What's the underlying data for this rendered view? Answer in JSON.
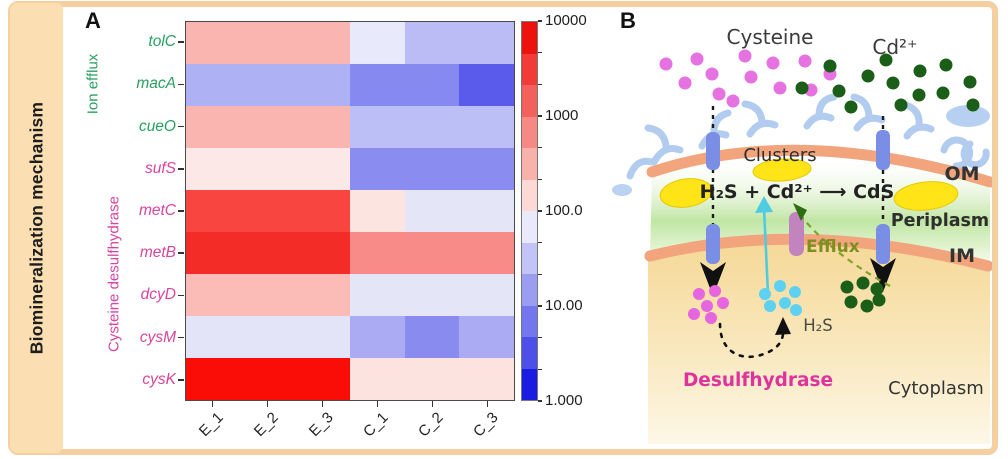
{
  "sidebar": {
    "title": "Biomineralization mechanism"
  },
  "panel_a": {
    "label": "A"
  },
  "panel_b": {
    "label": "B",
    "labels": {
      "cysteine": "Cysteine",
      "cd": "Cd²⁺",
      "clusters": "Clusters",
      "reaction": "H₂S + Cd²⁺ ⟶ CdS",
      "om": "OM",
      "periplasm": "Periplasm",
      "im": "IM",
      "efflux": "Efflux",
      "h2s": "H₂S",
      "desulfhydrase": "Desulfhydrase",
      "cytoplasm": "Cytoplasm"
    },
    "colors": {
      "cysteine_dots": "#e572e0",
      "cd_dots": "#1a5e18",
      "h2s_dots": "#5fd1f0",
      "membrane": "#f2a47c",
      "channel": "#7a8ee6",
      "efflux_pump": "#c184be",
      "cluster_blob": "#ffe418",
      "periplasm_glow": "#b8e399",
      "cytoplasm_fill": "#f5d897",
      "desulfhydrase_text": "#e0329c",
      "efflux_text": "#7e8e21",
      "lps": "#aac7ef"
    }
  },
  "chart_data": {
    "type": "heatmap",
    "title": "",
    "rows": [
      "tolC",
      "macA",
      "cueO",
      "sufS",
      "metC",
      "metB",
      "dcyD",
      "cysM",
      "cysK"
    ],
    "row_groups": [
      {
        "label": "Ion efflux",
        "rows": [
          "tolC",
          "macA",
          "cueO"
        ],
        "color": "#27a05f"
      },
      {
        "label": "Cysteine desulfhydrase",
        "rows": [
          "sufS",
          "metC",
          "metB",
          "dcyD",
          "cysM",
          "cysK"
        ],
        "color": "#d8449e"
      }
    ],
    "columns": [
      "E_1",
      "E_2",
      "E_3",
      "C_1",
      "C_2",
      "C_3"
    ],
    "values_approx": [
      [
        800,
        800,
        800,
        60,
        22,
        22
      ],
      [
        16,
        16,
        16,
        7,
        7,
        3
      ],
      [
        800,
        800,
        800,
        22,
        22,
        22
      ],
      [
        150,
        150,
        150,
        7,
        7,
        7
      ],
      [
        4000,
        4000,
        4000,
        180,
        65,
        65
      ],
      [
        6000,
        6000,
        6000,
        1800,
        1800,
        1800
      ],
      [
        800,
        800,
        800,
        65,
        65,
        65
      ],
      [
        60,
        60,
        60,
        14,
        7,
        14
      ],
      [
        10000,
        10000,
        10000,
        180,
        180,
        180
      ]
    ],
    "cell_colors": [
      [
        "#fab5b1",
        "#fab5b1",
        "#fab5b1",
        "#e8e9fa",
        "#bbbcf5",
        "#bbbcf5"
      ],
      [
        "#aeb1f3",
        "#aeb1f3",
        "#aeb1f3",
        "#8689f0",
        "#8689f0",
        "#5a5beb"
      ],
      [
        "#fab5b1",
        "#fab5b1",
        "#fab5b1",
        "#bcbef6",
        "#bcbef6",
        "#bcbef6"
      ],
      [
        "#fce8e6",
        "#fce8e6",
        "#fce8e6",
        "#8a8def",
        "#8a8def",
        "#8a8def"
      ],
      [
        "#f9453f",
        "#f9453f",
        "#f9453f",
        "#fce4e0",
        "#e4e6f8",
        "#e4e6f8"
      ],
      [
        "#f32c28",
        "#f32c28",
        "#f32c28",
        "#f88b88",
        "#f88b88",
        "#f88b88"
      ],
      [
        "#fbbcb8",
        "#fbbcb8",
        "#fbbcb8",
        "#e4e6f8",
        "#e4e6f8",
        "#e4e6f8"
      ],
      [
        "#e4e4f9",
        "#e4e4f9",
        "#e4e4f9",
        "#aaabf3",
        "#8a8bef",
        "#aaabf3"
      ],
      [
        "#fb0d07",
        "#fb0d07",
        "#fb0d07",
        "#fce3e0",
        "#fce3e0",
        "#fce3e0"
      ]
    ],
    "colorbar": {
      "scale": "log10",
      "range": [
        1,
        10000
      ],
      "tick_labels": [
        "10000",
        "1000",
        "100.0",
        "10.00",
        "1.000"
      ],
      "segments": [
        "#ed120e",
        "#f03b36",
        "#f2615b",
        "#f68983",
        "#f9b1ab",
        "#fcd9d4",
        "#e9e9fb",
        "#c2c3f6",
        "#9b9df1",
        "#7476ed",
        "#4d4fe8",
        "#1a1ce2"
      ],
      "position": "right"
    },
    "xlabel": "",
    "ylabel": "",
    "grid": false,
    "legend_position": "right"
  }
}
